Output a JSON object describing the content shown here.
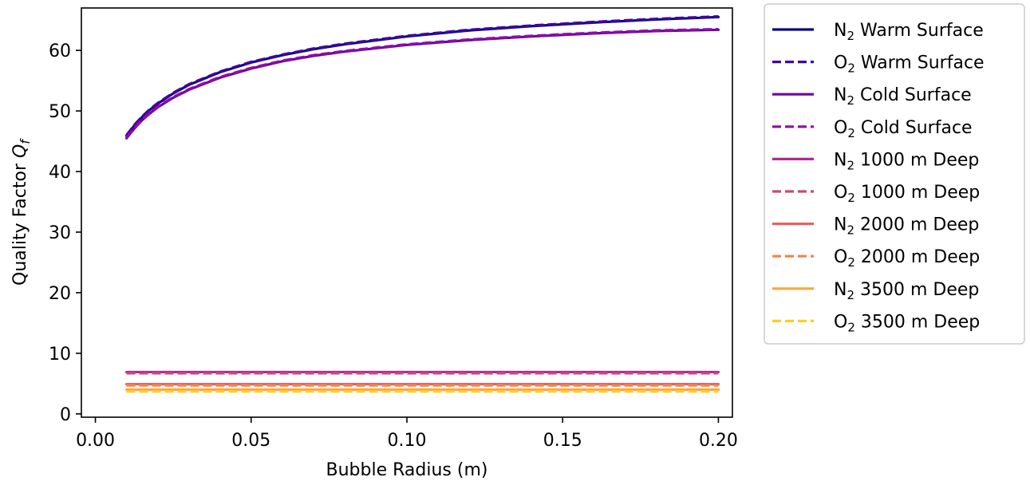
{
  "chart_data": {
    "type": "line",
    "title": "",
    "xlabel": "Bubble Radius (m)",
    "ylabel": {
      "text": "Quality Factor ",
      "symbol": "Q",
      "subscript": "f"
    },
    "xlim": [
      -0.0045,
      0.2045
    ],
    "ylim": [
      -0.55,
      67.0
    ],
    "x_ticks": [
      0.0,
      0.05,
      0.1,
      0.15,
      0.2
    ],
    "x_tick_labels": [
      "0.00",
      "0.05",
      "0.10",
      "0.15",
      "0.20"
    ],
    "y_ticks": [
      0,
      10,
      20,
      30,
      40,
      50,
      60
    ],
    "y_tick_labels": [
      "0",
      "10",
      "20",
      "30",
      "40",
      "50",
      "60"
    ],
    "grid": false,
    "legend_placement": "outside-top-right",
    "series": [
      {
        "name": {
          "prefix": "N",
          "sub": "2",
          "rest": " Warm Surface"
        },
        "color": "#0d0887",
        "dash": "solid",
        "x": [
          0.01,
          0.0125,
          0.015,
          0.0175,
          0.02,
          0.025,
          0.03,
          0.04,
          0.05,
          0.06,
          0.07,
          0.08,
          0.1,
          0.12,
          0.14,
          0.16,
          0.18,
          0.2
        ],
        "y": [
          45.9,
          47.6,
          49.0,
          50.2,
          51.2,
          52.9,
          54.3,
          56.4,
          58.0,
          59.2,
          60.2,
          61.0,
          62.3,
          63.3,
          64.0,
          64.6,
          65.1,
          65.5
        ]
      },
      {
        "name": {
          "prefix": "O",
          "sub": "2",
          "rest": " Warm Surface"
        },
        "color": "#41049d",
        "dash": "dashed",
        "x": [
          0.01,
          0.0125,
          0.015,
          0.0175,
          0.02,
          0.025,
          0.03,
          0.04,
          0.05,
          0.06,
          0.07,
          0.08,
          0.1,
          0.12,
          0.14,
          0.16,
          0.18,
          0.2
        ],
        "y": [
          46.0,
          47.7,
          49.1,
          50.3,
          51.3,
          53.0,
          54.4,
          56.5,
          58.1,
          59.3,
          60.3,
          61.1,
          62.4,
          63.4,
          64.1,
          64.7,
          65.2,
          65.6
        ]
      },
      {
        "name": {
          "prefix": "N",
          "sub": "2",
          "rest": " Cold Surface"
        },
        "color": "#6a00a8",
        "dash": "solid",
        "x": [
          0.01,
          0.0125,
          0.015,
          0.0175,
          0.02,
          0.025,
          0.03,
          0.04,
          0.05,
          0.06,
          0.07,
          0.08,
          0.1,
          0.12,
          0.14,
          0.16,
          0.18,
          0.2
        ],
        "y": [
          45.5,
          47.1,
          48.5,
          49.6,
          50.6,
          52.2,
          53.5,
          55.5,
          57.0,
          58.2,
          59.1,
          59.8,
          60.9,
          61.7,
          62.3,
          62.8,
          63.2,
          63.4
        ]
      },
      {
        "name": {
          "prefix": "O",
          "sub": "2",
          "rest": " Cold Surface"
        },
        "color": "#8f0da4",
        "dash": "dashed",
        "x": [
          0.01,
          0.0125,
          0.015,
          0.0175,
          0.02,
          0.025,
          0.03,
          0.04,
          0.05,
          0.06,
          0.07,
          0.08,
          0.1,
          0.12,
          0.14,
          0.16,
          0.18,
          0.2
        ],
        "y": [
          45.6,
          47.2,
          48.6,
          49.7,
          50.7,
          52.3,
          53.6,
          55.6,
          57.1,
          58.3,
          59.2,
          59.9,
          61.0,
          61.8,
          62.4,
          62.9,
          63.3,
          63.5
        ]
      },
      {
        "name": {
          "prefix": "N",
          "sub": "2",
          "rest": " 1000 m Deep"
        },
        "color": "#b12a90",
        "dash": "solid",
        "x": [
          0.01,
          0.2
        ],
        "y": [
          6.9,
          6.9
        ]
      },
      {
        "name": {
          "prefix": "O",
          "sub": "2",
          "rest": " 1000 m Deep"
        },
        "color": "#cc4778",
        "dash": "dashed",
        "x": [
          0.01,
          0.2
        ],
        "y": [
          6.7,
          6.7
        ]
      },
      {
        "name": {
          "prefix": "N",
          "sub": "2",
          "rest": " 2000 m Deep"
        },
        "color": "#e16462",
        "dash": "solid",
        "x": [
          0.01,
          0.2
        ],
        "y": [
          4.9,
          4.9
        ]
      },
      {
        "name": {
          "prefix": "O",
          "sub": "2",
          "rest": " 2000 m Deep"
        },
        "color": "#f2844b",
        "dash": "dashed",
        "x": [
          0.01,
          0.2
        ],
        "y": [
          4.7,
          4.7
        ]
      },
      {
        "name": {
          "prefix": "N",
          "sub": "2",
          "rest": " 3500 m Deep"
        },
        "color": "#fca636",
        "dash": "solid",
        "x": [
          0.01,
          0.2
        ],
        "y": [
          4.0,
          4.0
        ]
      },
      {
        "name": {
          "prefix": "O",
          "sub": "2",
          "rest": " 3500 m Deep"
        },
        "color": "#fcce25",
        "dash": "dashed",
        "x": [
          0.01,
          0.2
        ],
        "y": [
          3.7,
          3.7
        ]
      }
    ]
  }
}
